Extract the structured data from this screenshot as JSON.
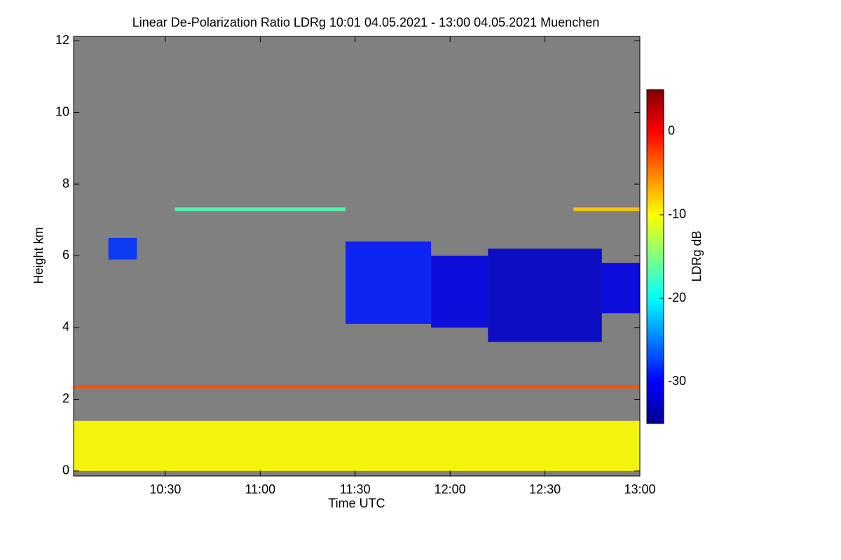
{
  "chart_data": {
    "type": "heatmap",
    "title": "Linear De-Polarization Ratio LDRg   10:01 04.05.2021 - 13:00 04.05.2021 Muenchen",
    "x_label": "Time UTC",
    "y_label": "Height km",
    "colorbar_label": "LDRg dB",
    "colormap": "jet",
    "background": "#808080",
    "xlim": [
      10.0167,
      13.0
    ],
    "xticks": [
      {
        "value": 10.5,
        "label": "10:30"
      },
      {
        "value": 11,
        "label": "11:00"
      },
      {
        "value": 11.5,
        "label": "11:30"
      },
      {
        "value": 12,
        "label": "12:00"
      },
      {
        "value": 12.5,
        "label": "12:30"
      },
      {
        "value": 13,
        "label": "13:00"
      }
    ],
    "ylim": [
      -0.14,
      12.12
    ],
    "yticks": [
      0,
      2,
      4,
      6,
      8,
      10,
      12
    ],
    "clim": [
      -35,
      5
    ],
    "cticks": [
      0,
      -10,
      -20,
      -30
    ],
    "regions": [
      {
        "x": [
          10.0167,
          13.0
        ],
        "y": [
          0,
          1.4
        ],
        "value": -10
      },
      {
        "x": [
          10.0167,
          13.0
        ],
        "y": [
          2.3,
          2.4
        ],
        "value": -3
      },
      {
        "x": [
          10.55,
          11.45
        ],
        "y": [
          7.25,
          7.35
        ],
        "value": -17
      },
      {
        "x": [
          12.65,
          13.0
        ],
        "y": [
          7.25,
          7.35
        ],
        "value": -8
      },
      {
        "x": [
          10.2,
          10.35
        ],
        "y": [
          5.9,
          6.5
        ],
        "value": -28
      },
      {
        "x": [
          11.45,
          11.9
        ],
        "y": [
          4.1,
          6.4
        ],
        "value": -29
      },
      {
        "x": [
          11.9,
          12.2
        ],
        "y": [
          4.0,
          6.0
        ],
        "value": -31
      },
      {
        "x": [
          12.2,
          12.8
        ],
        "y": [
          3.6,
          6.2
        ],
        "value": -32
      },
      {
        "x": [
          12.8,
          13.0
        ],
        "y": [
          4.4,
          5.8
        ],
        "value": -31
      }
    ]
  }
}
